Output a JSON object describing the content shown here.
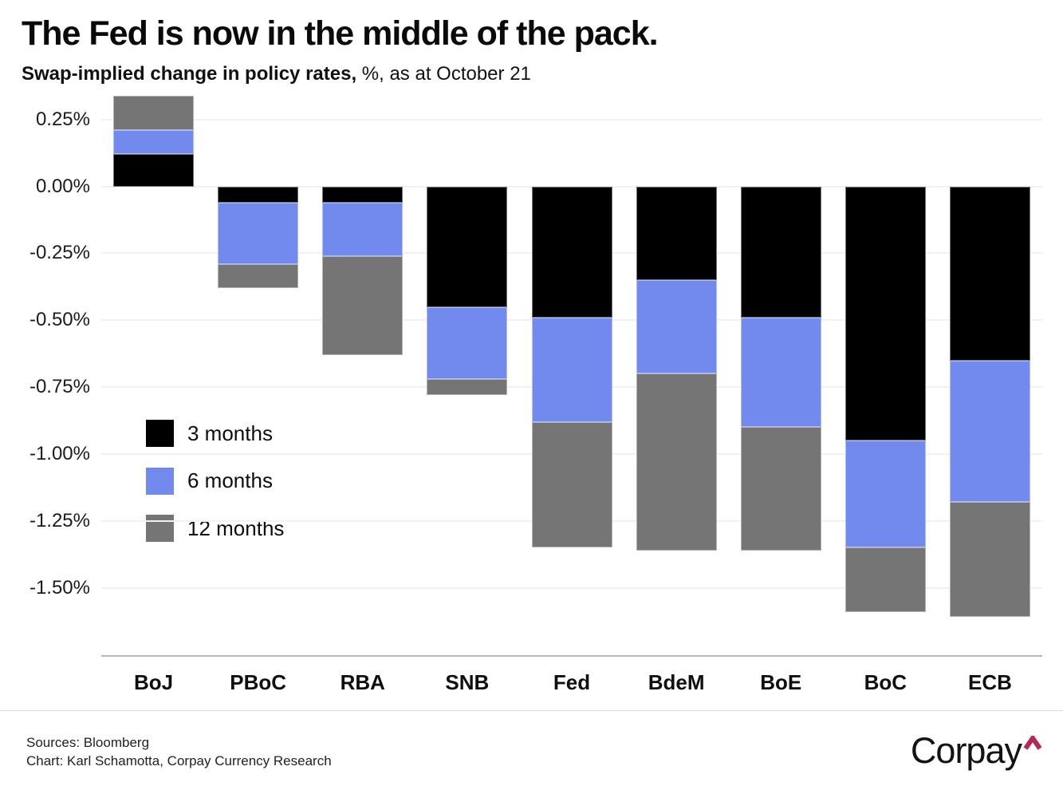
{
  "title": "The Fed is now in the middle of the pack.",
  "subtitle": {
    "bold": "Swap-implied change in policy rates,",
    "regular": " %, as at October 21"
  },
  "footer": {
    "sources": "Sources: Bloomberg",
    "credit": "Chart: Karl Schamotta, Corpay Currency Research"
  },
  "logo": {
    "text": "Corpay",
    "caret": "^",
    "caret_color": "#b42a51"
  },
  "colors": {
    "three_months": "#000000",
    "six_months": "#7289ee",
    "twelve_months": "#757575",
    "gridline": "#f1f1f1",
    "axis_line": "#b6b6b6"
  },
  "chart_data": {
    "type": "bar",
    "stacked": true,
    "values_are_cumulative": true,
    "title": "The Fed is now in the middle of the pack.",
    "subtitle": "Swap-implied change in policy rates, %, as at October 21",
    "xlabel": "",
    "ylabel": "Swap-implied change in policy rates, %",
    "categories": [
      "BoJ",
      "PBoC",
      "RBA",
      "SNB",
      "Fed",
      "BdeM",
      "BoE",
      "BoC",
      "ECB"
    ],
    "series": [
      {
        "name": "3 months",
        "color": "#000000",
        "values": [
          0.12,
          -0.06,
          -0.06,
          -0.45,
          -0.49,
          -0.35,
          -0.49,
          -0.95,
          -0.65
        ]
      },
      {
        "name": "6 months",
        "color": "#7289ee",
        "values": [
          0.21,
          -0.29,
          -0.26,
          -0.72,
          -0.88,
          -0.7,
          -0.9,
          -1.35,
          -1.18
        ]
      },
      {
        "name": "12 months",
        "color": "#757575",
        "values": [
          0.34,
          -0.38,
          -0.63,
          -0.78,
          -1.35,
          -1.36,
          -1.36,
          -1.59,
          -1.61
        ]
      }
    ],
    "ylim": [
      -1.755,
      0.345
    ],
    "y_ticks": [
      0.25,
      0,
      -0.25,
      -0.5,
      -0.75,
      -1.0,
      -1.25,
      -1.5
    ],
    "y_tick_labels": [
      "0.25%",
      "0.00%",
      "-0.25%",
      "-0.50%",
      "-0.75%",
      "-1.00%",
      "-1.25%",
      "-1.50%"
    ],
    "grid": true,
    "legend_position": "inside-left"
  }
}
